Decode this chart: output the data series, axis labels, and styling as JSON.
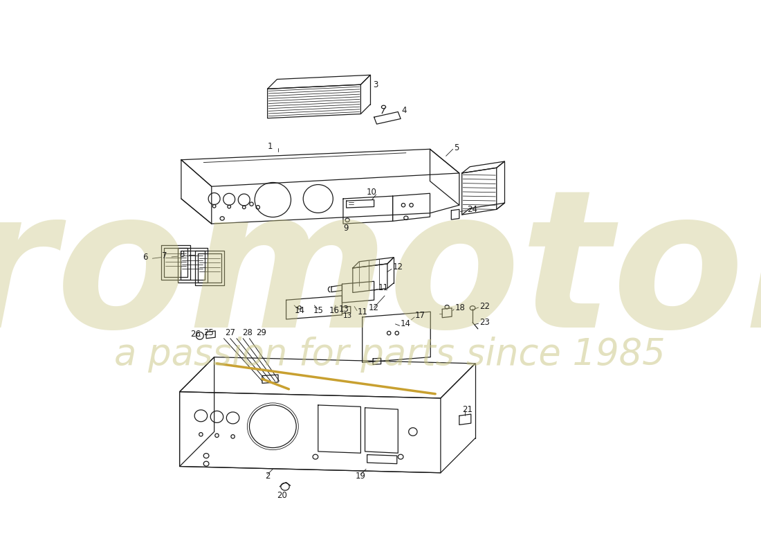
{
  "bg_color": "#ffffff",
  "lc": "#1a1a1a",
  "lw": 0.9,
  "lt": 0.55,
  "fs": 8.5,
  "wm1": "euromotores",
  "wm2": "a passion for parts since 1985",
  "wm_col": "#c8c480",
  "wm_alpha1": 0.4,
  "wm_alpha2": 0.5,
  "gold": "#c8a030"
}
